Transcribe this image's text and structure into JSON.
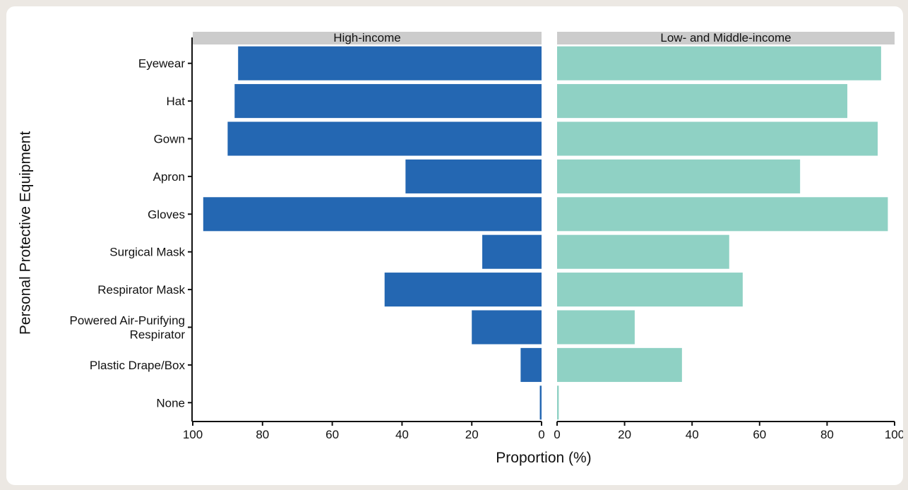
{
  "chart_data": {
    "type": "bar",
    "orientation": "horizontal",
    "layout": "back-to-back facets",
    "ylabel": "Personal Protective Equipment",
    "xlabel": "Proportion (%)",
    "xlim": [
      0,
      100
    ],
    "xticks": [
      0,
      20,
      40,
      60,
      80,
      100
    ],
    "grid": false,
    "categories": [
      "Eyewear",
      "Hat",
      "Gown",
      "Apron",
      "Gloves",
      "Surgical Mask",
      "Respirator Mask",
      "Powered Air-Purifying Respirator",
      "Plastic Drape/Box",
      "None"
    ],
    "series": [
      {
        "name": "High-income",
        "color": "#2467b2",
        "values": [
          87,
          88,
          90,
          39,
          97,
          17,
          45,
          20,
          6,
          0.5
        ]
      },
      {
        "name": "Low- and Middle-income",
        "color": "#8fd1c4",
        "values": [
          96,
          86,
          95,
          72,
          98,
          51,
          55,
          23,
          37,
          0.5
        ]
      }
    ]
  }
}
